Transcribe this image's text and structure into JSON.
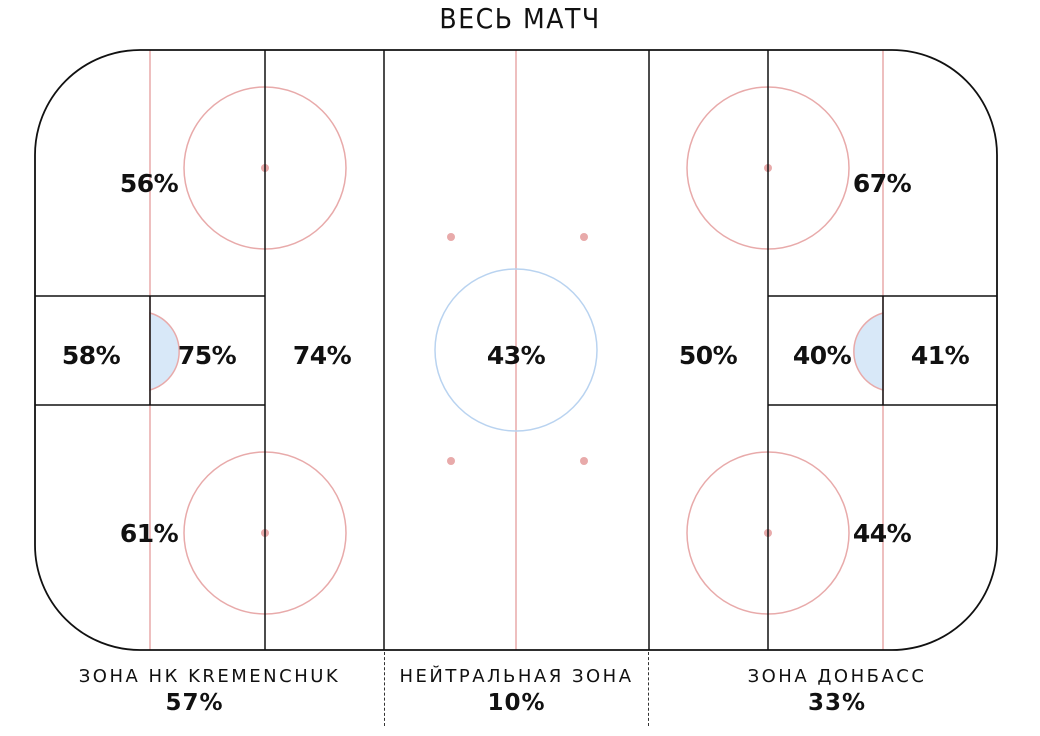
{
  "title": "ВЕСЬ МАТЧ",
  "colors": {
    "board": "#111111",
    "red_line": "#e8aaaa",
    "center_circle": "#b9d3f0",
    "crease_fill": "#d8e8f8",
    "text": "#111111"
  },
  "regions": {
    "home_top_circle": "56%",
    "home_net_behind": "58%",
    "home_slot": "75%",
    "home_point": "74%",
    "home_bottom_circle": "61%",
    "neutral_center": "43%",
    "away_point": "50%",
    "away_slot": "40%",
    "away_net_behind": "41%",
    "away_top_circle": "67%",
    "away_bottom_circle": "44%"
  },
  "zones": [
    {
      "label": "ЗОНА НК KREMENCHUK",
      "value": "57%"
    },
    {
      "label": "НЕЙТРАЛЬНАЯ ЗОНА",
      "value": "10%"
    },
    {
      "label": "ЗОНА ДОНБАСС",
      "value": "33%"
    }
  ]
}
